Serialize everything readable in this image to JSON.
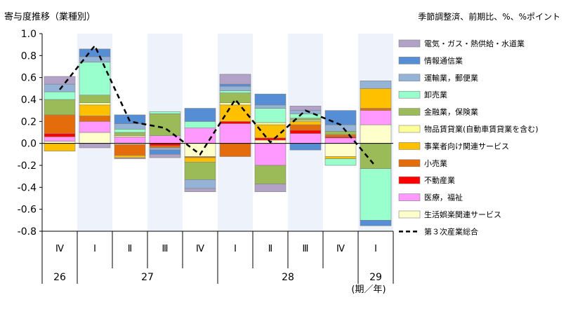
{
  "chart_data": {
    "type": "bar",
    "title": "寄与度推移（業種別）",
    "subtitle": "季節調整済、前期比、%、%ポイント",
    "x_unit_label": "(期／年)",
    "ylim": [
      -0.8,
      1.0
    ],
    "y_ticks": [
      "1.0",
      "0.8",
      "0.6",
      "0.4",
      "0.2",
      "0.0",
      "-0.2",
      "-0.4",
      "-0.6",
      "-0.8"
    ],
    "y_tick_values": [
      1.0,
      0.8,
      0.6,
      0.4,
      0.2,
      0.0,
      -0.2,
      -0.4,
      -0.6,
      -0.8
    ],
    "categories": [
      "Ⅳ",
      "Ⅰ",
      "Ⅱ",
      "Ⅲ",
      "Ⅳ",
      "Ⅰ",
      "Ⅱ",
      "Ⅲ",
      "Ⅳ",
      "Ⅰ"
    ],
    "shaded_categories": [
      1,
      3,
      5,
      7,
      9
    ],
    "years": [
      {
        "label": "26",
        "start": 0,
        "end": 0
      },
      {
        "label": "27",
        "start": 1,
        "end": 4
      },
      {
        "label": "28",
        "start": 5,
        "end": 8
      },
      {
        "label": "29",
        "start": 9,
        "end": 9
      }
    ],
    "series": [
      {
        "name": "生活娯楽関連サービス",
        "color": "#FFFFCC",
        "values": [
          0.02,
          0.1,
          -0.01,
          0.0,
          -0.12,
          0.0,
          0.03,
          0.0,
          -0.12,
          0.17
        ]
      },
      {
        "name": "医療，福祉",
        "color": "#FF99FF",
        "values": [
          0.04,
          0.1,
          0.06,
          0.07,
          0.14,
          0.18,
          -0.2,
          0.09,
          0.05,
          0.13
        ]
      },
      {
        "name": "不動産業",
        "color": "#FF0000",
        "values": [
          0.03,
          0.0,
          0.0,
          -0.02,
          0.0,
          0.02,
          0.02,
          0.03,
          0.01,
          0.0
        ]
      },
      {
        "name": "小売業",
        "color": "#E46C0A",
        "values": [
          0.17,
          0.05,
          -0.1,
          -0.02,
          -0.01,
          -0.12,
          0.0,
          0.05,
          0.02,
          0.02
        ]
      },
      {
        "name": "事業者向け関連サービス",
        "color": "#FFC000",
        "values": [
          -0.07,
          0.1,
          -0.02,
          0.0,
          -0.04,
          0.15,
          0.12,
          0.03,
          -0.02,
          0.18
        ]
      },
      {
        "name": "物品賃貸業(自動車賃貸業を含む)",
        "color": "#FFFF99",
        "values": [
          0.0,
          0.02,
          0.01,
          0.0,
          0.0,
          0.02,
          0.02,
          0.01,
          0.0,
          0.0
        ]
      },
      {
        "name": "金融業，保険業",
        "color": "#9BBB59",
        "values": [
          0.14,
          0.07,
          0.03,
          0.2,
          -0.16,
          0.09,
          -0.17,
          0.02,
          0.03,
          -0.23
        ]
      },
      {
        "name": "卸売業",
        "color": "#99FFCC",
        "values": [
          0.07,
          0.3,
          0.03,
          0.02,
          0.06,
          0.02,
          0.13,
          0.04,
          -0.06,
          -0.47
        ]
      },
      {
        "name": "運輸業，郵便業",
        "color": "#95B3D7",
        "values": [
          0.07,
          0.05,
          0.05,
          -0.02,
          -0.08,
          0.04,
          0.03,
          0.03,
          0.06,
          0.07
        ]
      },
      {
        "name": "情報通信業",
        "color": "#558ED5",
        "values": [
          0.0,
          0.07,
          0.08,
          -0.04,
          0.12,
          0.02,
          0.1,
          -0.06,
          0.13,
          -0.05
        ]
      },
      {
        "name": "電気・ガス・熱供給・水道業",
        "color": "#B3A2C7",
        "values": [
          0.07,
          -0.04,
          -0.01,
          -0.03,
          -0.03,
          0.09,
          -0.07,
          0.04,
          0.0,
          0.0
        ]
      }
    ],
    "legend_order": [
      10,
      9,
      8,
      7,
      6,
      5,
      4,
      3,
      2,
      1,
      0
    ],
    "line": {
      "name": "第３次産業総合",
      "values": [
        0.49,
        0.89,
        0.2,
        0.14,
        -0.1,
        0.4,
        0.01,
        0.3,
        0.17,
        -0.21
      ]
    }
  }
}
